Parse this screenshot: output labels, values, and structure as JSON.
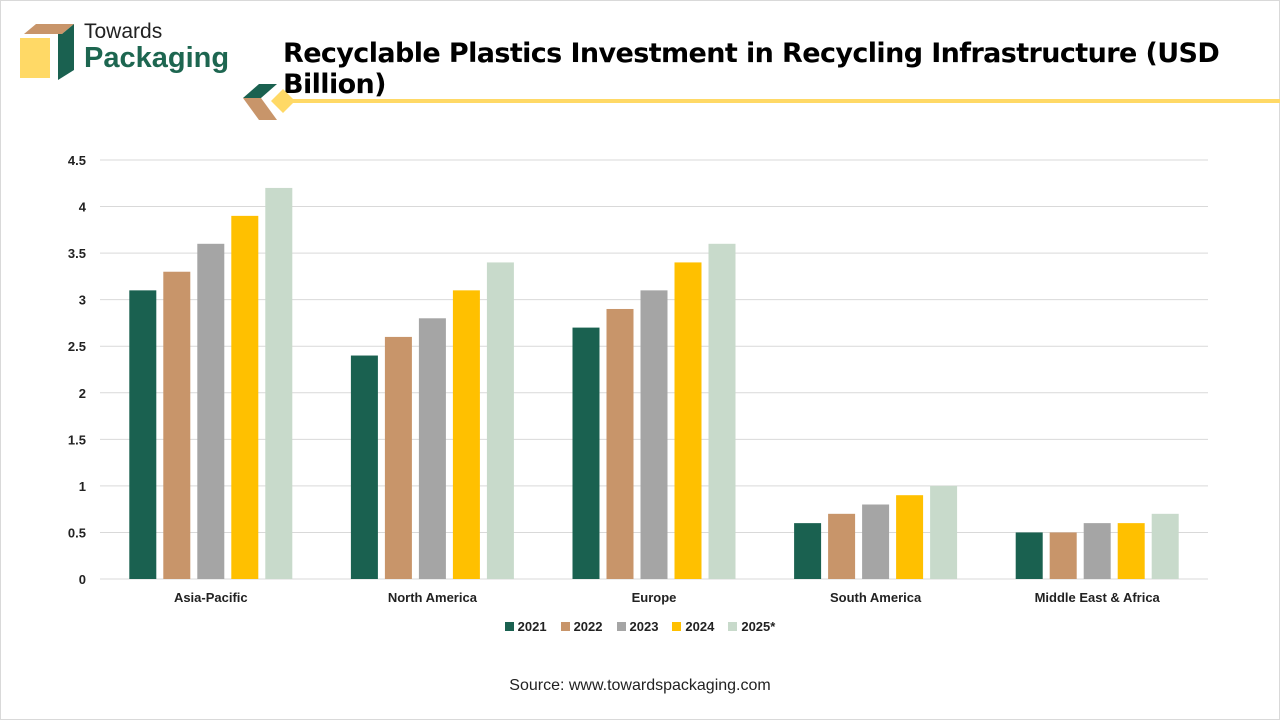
{
  "brand": {
    "line1": "Towards",
    "line2": "Packaging"
  },
  "source": "Source: www.towardspackaging.com",
  "colors": {
    "2021": "#1a6150",
    "2022": "#c8956a",
    "2023": "#a5a5a5",
    "2024": "#ffc000",
    "2025*": "#c8dacb"
  },
  "chart_data": {
    "type": "bar",
    "title": "Recyclable Plastics Investment in Recycling Infrastructure (USD Billion)",
    "xlabel": "",
    "ylabel": "",
    "ylim": [
      0,
      4.5
    ],
    "yticks": [
      "0",
      "0.5",
      "1",
      "1.5",
      "2",
      "2.5",
      "3",
      "3.5",
      "4",
      "4.5"
    ],
    "grid": true,
    "legend_position": "bottom",
    "categories": [
      "Asia-Pacific",
      "North America",
      "Europe",
      "South America",
      "Middle East & Africa"
    ],
    "series": [
      {
        "name": "2021",
        "values": [
          3.1,
          2.4,
          2.7,
          0.6,
          0.5
        ]
      },
      {
        "name": "2022",
        "values": [
          3.3,
          2.6,
          2.9,
          0.7,
          0.5
        ]
      },
      {
        "name": "2023",
        "values": [
          3.6,
          2.8,
          3.1,
          0.8,
          0.6
        ]
      },
      {
        "name": "2024",
        "values": [
          3.9,
          3.1,
          3.4,
          0.9,
          0.6
        ]
      },
      {
        "name": "2025*",
        "values": [
          4.2,
          3.4,
          3.6,
          1.0,
          0.7
        ]
      }
    ]
  }
}
